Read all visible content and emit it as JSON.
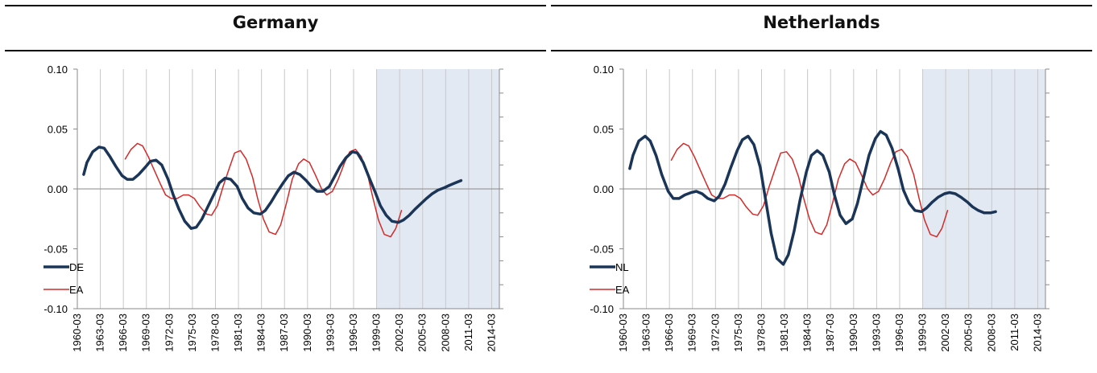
{
  "chart_data": [
    {
      "type": "line",
      "title": "Germany",
      "xlabel": "",
      "ylabel": "",
      "x_start": "1960-03",
      "x_end": "2015-03",
      "x_tick_labels": [
        "1960-03",
        "1963-03",
        "1966-03",
        "1969-03",
        "1972-03",
        "1975-03",
        "1978-03",
        "1981-03",
        "1984-03",
        "1987-03",
        "1990-03",
        "1993-03",
        "1996-03",
        "1999-03",
        "2002-03",
        "2005-03",
        "2008-03",
        "2011-03",
        "2014-03"
      ],
      "y_tick_labels": [
        "0.10",
        "0.05",
        "0.00",
        "-0.05",
        "-0.10"
      ],
      "ylim": [
        -0.1,
        0.1
      ],
      "y_ticks": [
        0.1,
        0.05,
        0,
        -0.05,
        -0.1
      ],
      "shaded_region": {
        "from": "1999-03",
        "to": "2015-03",
        "color": "#e3e9f2"
      },
      "legend": "bottom-left",
      "grid": "vertical",
      "series": [
        {
          "name": "DE",
          "color": "#1a3557",
          "stroke": 3.5,
          "points": [
            [
              "1961-01",
              0.012
            ],
            [
              "1961-06",
              0.022
            ],
            [
              "1962-03",
              0.031
            ],
            [
              "1963-01",
              0.035
            ],
            [
              "1963-09",
              0.034
            ],
            [
              "1964-06",
              0.027
            ],
            [
              "1965-03",
              0.019
            ],
            [
              "1966-01",
              0.011
            ],
            [
              "1966-09",
              0.008
            ],
            [
              "1967-06",
              0.008
            ],
            [
              "1968-03",
              0.012
            ],
            [
              "1969-01",
              0.018
            ],
            [
              "1969-09",
              0.023
            ],
            [
              "1970-06",
              0.024
            ],
            [
              "1971-03",
              0.02
            ],
            [
              "1972-01",
              0.008
            ],
            [
              "1972-09",
              -0.005
            ],
            [
              "1973-06",
              -0.017
            ],
            [
              "1974-03",
              -0.027
            ],
            [
              "1975-01",
              -0.033
            ],
            [
              "1975-09",
              -0.032
            ],
            [
              "1976-06",
              -0.025
            ],
            [
              "1977-03",
              -0.015
            ],
            [
              "1978-01",
              -0.004
            ],
            [
              "1978-09",
              0.005
            ],
            [
              "1979-06",
              0.009
            ],
            [
              "1980-03",
              0.008
            ],
            [
              "1981-01",
              0.002
            ],
            [
              "1981-09",
              -0.008
            ],
            [
              "1982-06",
              -0.016
            ],
            [
              "1983-03",
              -0.02
            ],
            [
              "1984-01",
              -0.021
            ],
            [
              "1984-09",
              -0.018
            ],
            [
              "1985-06",
              -0.011
            ],
            [
              "1986-03",
              -0.003
            ],
            [
              "1987-01",
              0.005
            ],
            [
              "1987-09",
              0.011
            ],
            [
              "1988-06",
              0.014
            ],
            [
              "1989-03",
              0.012
            ],
            [
              "1990-01",
              0.007
            ],
            [
              "1990-09",
              0.002
            ],
            [
              "1991-06",
              -0.002
            ],
            [
              "1992-03",
              -0.002
            ],
            [
              "1993-01",
              0.002
            ],
            [
              "1993-09",
              0.01
            ],
            [
              "1994-06",
              0.019
            ],
            [
              "1995-03",
              0.026
            ],
            [
              "1996-01",
              0.031
            ],
            [
              "1996-09",
              0.03
            ],
            [
              "1997-06",
              0.022
            ],
            [
              "1998-03",
              0.01
            ],
            [
              "1999-01",
              -0.003
            ],
            [
              "1999-09",
              -0.014
            ],
            [
              "2000-06",
              -0.022
            ],
            [
              "2001-03",
              -0.027
            ],
            [
              "2002-01",
              -0.028
            ],
            [
              "2002-09",
              -0.026
            ],
            [
              "2003-06",
              -0.022
            ],
            [
              "2004-03",
              -0.017
            ],
            [
              "2005-01",
              -0.012
            ],
            [
              "2005-09",
              -0.008
            ],
            [
              "2006-06",
              -0.004
            ],
            [
              "2007-03",
              -0.001
            ],
            [
              "2008-01",
              0.001
            ],
            [
              "2008-09",
              0.003
            ],
            [
              "2009-06",
              0.005
            ],
            [
              "2010-03",
              0.007
            ]
          ]
        },
        {
          "name": "EA",
          "color": "#d42a2a",
          "stroke": 1.5,
          "points": [
            [
              "1966-06",
              0.025
            ],
            [
              "1967-03",
              0.033
            ],
            [
              "1968-01",
              0.038
            ],
            [
              "1968-09",
              0.036
            ],
            [
              "1969-06",
              0.027
            ],
            [
              "1970-03",
              0.016
            ],
            [
              "1971-01",
              0.004
            ],
            [
              "1971-09",
              -0.005
            ],
            [
              "1972-06",
              -0.008
            ],
            [
              "1973-03",
              -0.008
            ],
            [
              "1974-01",
              -0.005
            ],
            [
              "1974-09",
              -0.005
            ],
            [
              "1975-06",
              -0.008
            ],
            [
              "1976-03",
              -0.015
            ],
            [
              "1977-01",
              -0.021
            ],
            [
              "1977-09",
              -0.022
            ],
            [
              "1978-06",
              -0.014
            ],
            [
              "1979-03",
              0.002
            ],
            [
              "1980-01",
              0.018
            ],
            [
              "1980-09",
              0.03
            ],
            [
              "1981-06",
              0.032
            ],
            [
              "1982-03",
              0.025
            ],
            [
              "1983-01",
              0.01
            ],
            [
              "1983-09",
              -0.008
            ],
            [
              "1984-06",
              -0.025
            ],
            [
              "1985-03",
              -0.036
            ],
            [
              "1986-01",
              -0.038
            ],
            [
              "1986-09",
              -0.03
            ],
            [
              "1987-06",
              -0.012
            ],
            [
              "1988-03",
              0.008
            ],
            [
              "1989-01",
              0.021
            ],
            [
              "1989-09",
              0.025
            ],
            [
              "1990-06",
              0.022
            ],
            [
              "1991-03",
              0.012
            ],
            [
              "1992-01",
              0.0
            ],
            [
              "1992-09",
              -0.005
            ],
            [
              "1993-06",
              -0.002
            ],
            [
              "1994-03",
              0.008
            ],
            [
              "1995-01",
              0.022
            ],
            [
              "1995-09",
              0.031
            ],
            [
              "1996-06",
              0.033
            ],
            [
              "1997-03",
              0.027
            ],
            [
              "1998-01",
              0.012
            ],
            [
              "1998-09",
              -0.007
            ],
            [
              "1999-06",
              -0.026
            ],
            [
              "2000-03",
              -0.038
            ],
            [
              "2001-01",
              -0.04
            ],
            [
              "2001-09",
              -0.033
            ],
            [
              "2002-06",
              -0.018
            ]
          ]
        }
      ]
    },
    {
      "type": "line",
      "title": "Netherlands",
      "xlabel": "",
      "ylabel": "",
      "x_start": "1960-03",
      "x_end": "2015-03",
      "x_tick_labels": [
        "1960-03",
        "1963-03",
        "1966-03",
        "1969-03",
        "1972-03",
        "1975-03",
        "1978-03",
        "1981-03",
        "1984-03",
        "1987-03",
        "1990-03",
        "1993-03",
        "1996-03",
        "1999-03",
        "2002-03",
        "2005-03",
        "2008-03",
        "2011-03",
        "2014-03"
      ],
      "y_tick_labels": [
        "0.10",
        "0.05",
        "0.00",
        "-0.05",
        "-0.10"
      ],
      "ylim": [
        -0.1,
        0.1
      ],
      "y_ticks": [
        0.1,
        0.05,
        0,
        -0.05,
        -0.1
      ],
      "shaded_region": {
        "from": "1999-03",
        "to": "2015-03",
        "color": "#e3e9f2"
      },
      "legend": "bottom-left",
      "grid": "vertical",
      "series": [
        {
          "name": "NL",
          "color": "#1a3557",
          "stroke": 3.5,
          "points": [
            [
              "1961-01",
              0.017
            ],
            [
              "1961-06",
              0.028
            ],
            [
              "1962-03",
              0.04
            ],
            [
              "1963-01",
              0.044
            ],
            [
              "1963-09",
              0.04
            ],
            [
              "1964-06",
              0.028
            ],
            [
              "1965-03",
              0.012
            ],
            [
              "1966-01",
              -0.002
            ],
            [
              "1966-09",
              -0.008
            ],
            [
              "1967-06",
              -0.008
            ],
            [
              "1968-03",
              -0.005
            ],
            [
              "1969-01",
              -0.003
            ],
            [
              "1969-09",
              -0.002
            ],
            [
              "1970-06",
              -0.004
            ],
            [
              "1971-03",
              -0.008
            ],
            [
              "1972-01",
              -0.01
            ],
            [
              "1972-09",
              -0.006
            ],
            [
              "1973-06",
              0.004
            ],
            [
              "1974-03",
              0.018
            ],
            [
              "1975-01",
              0.032
            ],
            [
              "1975-09",
              0.041
            ],
            [
              "1976-06",
              0.044
            ],
            [
              "1977-03",
              0.037
            ],
            [
              "1978-01",
              0.018
            ],
            [
              "1978-09",
              -0.008
            ],
            [
              "1979-06",
              -0.037
            ],
            [
              "1980-03",
              -0.058
            ],
            [
              "1981-01",
              -0.063
            ],
            [
              "1981-09",
              -0.055
            ],
            [
              "1982-06",
              -0.035
            ],
            [
              "1983-03",
              -0.01
            ],
            [
              "1984-01",
              0.014
            ],
            [
              "1984-09",
              0.028
            ],
            [
              "1985-06",
              0.032
            ],
            [
              "1986-03",
              0.028
            ],
            [
              "1987-01",
              0.014
            ],
            [
              "1987-09",
              -0.005
            ],
            [
              "1988-06",
              -0.022
            ],
            [
              "1989-03",
              -0.029
            ],
            [
              "1990-01",
              -0.025
            ],
            [
              "1990-09",
              -0.012
            ],
            [
              "1991-06",
              0.008
            ],
            [
              "1992-03",
              0.028
            ],
            [
              "1993-01",
              0.042
            ],
            [
              "1993-09",
              0.048
            ],
            [
              "1994-06",
              0.045
            ],
            [
              "1995-03",
              0.034
            ],
            [
              "1996-01",
              0.016
            ],
            [
              "1996-09",
              -0.001
            ],
            [
              "1997-06",
              -0.012
            ],
            [
              "1998-03",
              -0.018
            ],
            [
              "1999-01",
              -0.019
            ],
            [
              "1999-09",
              -0.016
            ],
            [
              "2000-06",
              -0.011
            ],
            [
              "2001-03",
              -0.007
            ],
            [
              "2002-01",
              -0.004
            ],
            [
              "2002-09",
              -0.003
            ],
            [
              "2003-06",
              -0.004
            ],
            [
              "2004-03",
              -0.007
            ],
            [
              "2005-01",
              -0.011
            ],
            [
              "2005-09",
              -0.015
            ],
            [
              "2006-06",
              -0.018
            ],
            [
              "2007-03",
              -0.02
            ],
            [
              "2008-01",
              -0.02
            ],
            [
              "2008-09",
              -0.019
            ]
          ]
        },
        {
          "name": "EA",
          "color": "#d42a2a",
          "stroke": 1.5,
          "points": [
            [
              "1966-06",
              0.024
            ],
            [
              "1967-03",
              0.033
            ],
            [
              "1968-01",
              0.038
            ],
            [
              "1968-09",
              0.036
            ],
            [
              "1969-06",
              0.027
            ],
            [
              "1970-03",
              0.016
            ],
            [
              "1971-01",
              0.004
            ],
            [
              "1971-09",
              -0.005
            ],
            [
              "1972-06",
              -0.008
            ],
            [
              "1973-03",
              -0.008
            ],
            [
              "1974-01",
              -0.005
            ],
            [
              "1974-09",
              -0.005
            ],
            [
              "1975-06",
              -0.008
            ],
            [
              "1976-03",
              -0.015
            ],
            [
              "1977-01",
              -0.021
            ],
            [
              "1977-09",
              -0.022
            ],
            [
              "1978-06",
              -0.014
            ],
            [
              "1979-03",
              0.002
            ],
            [
              "1980-01",
              0.018
            ],
            [
              "1980-09",
              0.03
            ],
            [
              "1981-06",
              0.031
            ],
            [
              "1982-03",
              0.025
            ],
            [
              "1983-01",
              0.01
            ],
            [
              "1983-09",
              -0.008
            ],
            [
              "1984-06",
              -0.025
            ],
            [
              "1985-03",
              -0.036
            ],
            [
              "1986-01",
              -0.038
            ],
            [
              "1986-09",
              -0.03
            ],
            [
              "1987-06",
              -0.012
            ],
            [
              "1988-03",
              0.008
            ],
            [
              "1989-01",
              0.021
            ],
            [
              "1989-09",
              0.025
            ],
            [
              "1990-06",
              0.022
            ],
            [
              "1991-03",
              0.012
            ],
            [
              "1992-01",
              0.0
            ],
            [
              "1992-09",
              -0.005
            ],
            [
              "1993-06",
              -0.002
            ],
            [
              "1994-03",
              0.008
            ],
            [
              "1995-01",
              0.022
            ],
            [
              "1995-09",
              0.031
            ],
            [
              "1996-06",
              0.033
            ],
            [
              "1997-03",
              0.027
            ],
            [
              "1998-01",
              0.012
            ],
            [
              "1998-09",
              -0.007
            ],
            [
              "1999-06",
              -0.026
            ],
            [
              "2000-03",
              -0.038
            ],
            [
              "2001-01",
              -0.04
            ],
            [
              "2001-09",
              -0.033
            ],
            [
              "2002-06",
              -0.018
            ]
          ]
        }
      ]
    }
  ]
}
